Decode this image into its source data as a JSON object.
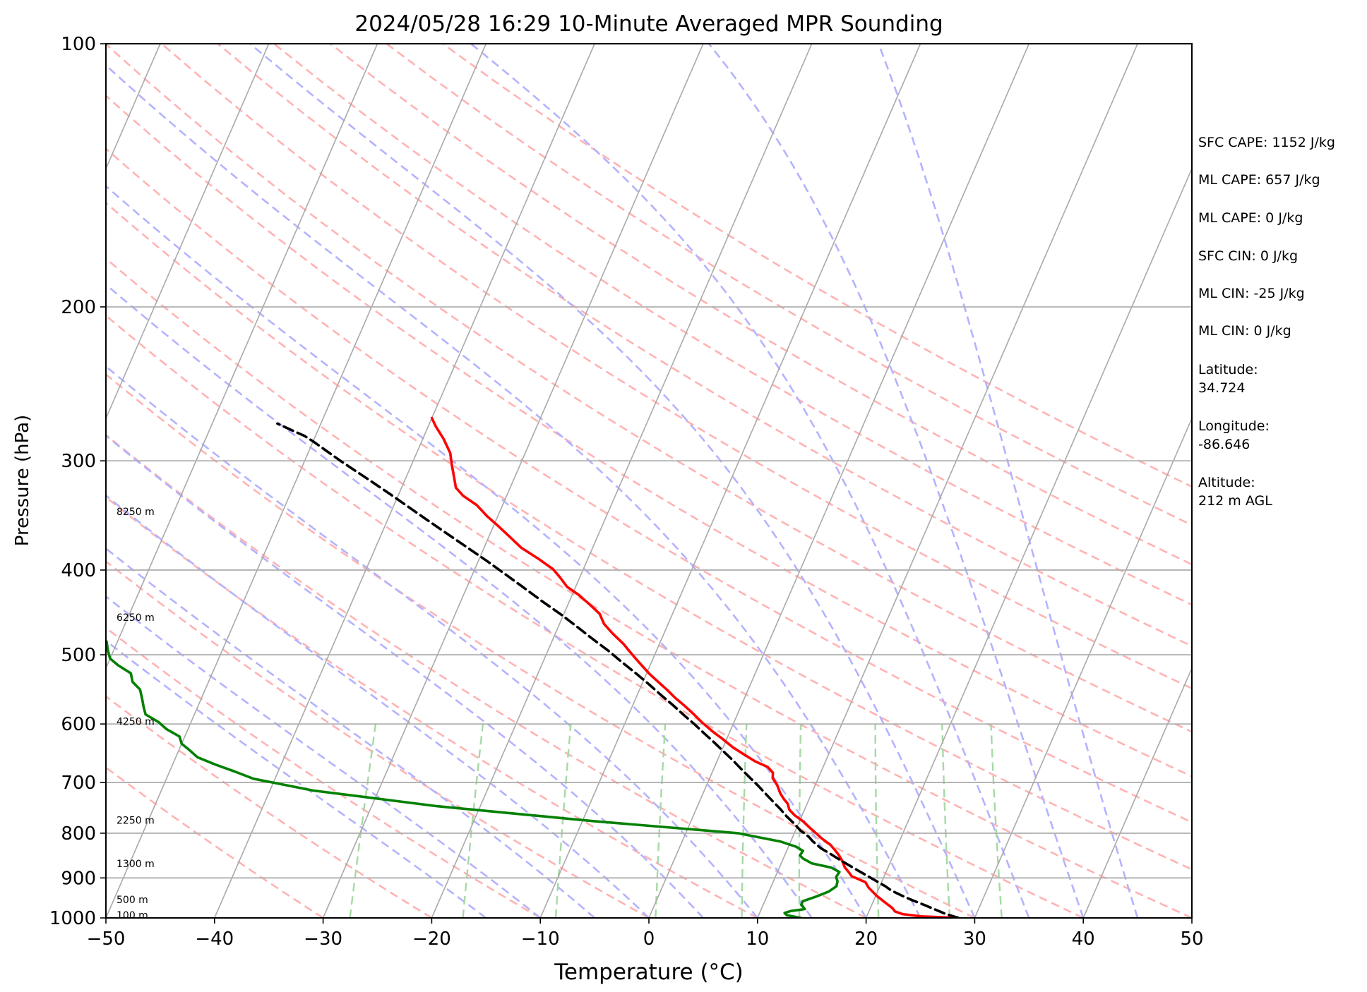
{
  "chart_data": {
    "type": "line",
    "title": "2024/05/28 16:29 10-Minute Averaged MPR Sounding",
    "xlabel": "Temperature (°C)",
    "ylabel": "Pressure (hPa)",
    "xlim": [
      -50,
      50
    ],
    "ylim": [
      1000,
      100
    ],
    "y_scale": "log",
    "skew_t": true,
    "grid": true,
    "x_ticks": [
      "−50",
      "−40",
      "−30",
      "−20",
      "−10",
      "0",
      "10",
      "20",
      "30",
      "40",
      "50"
    ],
    "y_ticks": [
      "100",
      "200",
      "300",
      "400",
      "500",
      "600",
      "700",
      "800",
      "900",
      "1000"
    ],
    "height_labels": [
      {
        "text": "8250 m",
        "p": 343
      },
      {
        "text": "6250 m",
        "p": 453
      },
      {
        "text": "4250 m",
        "p": 596
      },
      {
        "text": "2250 m",
        "p": 773
      },
      {
        "text": "1300 m",
        "p": 867
      },
      {
        "text": "500 m",
        "p": 953
      },
      {
        "text": "100 m",
        "p": 993
      }
    ],
    "series": [
      {
        "role": "temperature",
        "color": "#ff0000",
        "points": [
          [
            28.5,
            1000
          ],
          [
            25,
            996
          ],
          [
            23.2,
            990
          ],
          [
            22.4,
            983
          ],
          [
            22,
            974
          ],
          [
            21,
            958
          ],
          [
            20,
            942
          ],
          [
            19,
            923
          ],
          [
            18.5,
            910
          ],
          [
            17,
            896
          ],
          [
            16.6,
            887
          ],
          [
            16,
            875
          ],
          [
            15.5,
            860
          ],
          [
            15,
            848
          ],
          [
            14.5,
            838
          ],
          [
            13.8,
            825
          ],
          [
            12.8,
            812
          ],
          [
            12,
            800
          ],
          [
            11.1,
            787
          ],
          [
            10.3,
            775
          ],
          [
            9.3,
            763
          ],
          [
            8.6,
            752
          ],
          [
            8.2,
            740
          ],
          [
            7.6,
            730
          ],
          [
            7.1,
            720
          ],
          [
            6.5,
            705
          ],
          [
            5.8,
            692
          ],
          [
            5.6,
            682
          ],
          [
            4.9,
            672
          ],
          [
            3.5,
            662
          ],
          [
            2.2,
            650
          ],
          [
            0.9,
            638
          ],
          [
            -0.3,
            625
          ],
          [
            -1.6,
            612
          ],
          [
            -2.9,
            598
          ],
          [
            -4,
            585
          ],
          [
            -5.2,
            572
          ],
          [
            -6.4,
            560
          ],
          [
            -7.5,
            548
          ],
          [
            -8.6,
            537
          ],
          [
            -9.7,
            526
          ],
          [
            -10.7,
            515
          ],
          [
            -11.6,
            505
          ],
          [
            -12.5,
            495
          ],
          [
            -13.3,
            486
          ],
          [
            -14.7,
            473
          ],
          [
            -15.9,
            461
          ],
          [
            -16.7,
            449
          ],
          [
            -18,
            438
          ],
          [
            -19.4,
            427
          ],
          [
            -20.8,
            418
          ],
          [
            -21.8,
            408
          ],
          [
            -22.8,
            399
          ],
          [
            -24.6,
            388
          ],
          [
            -26.6,
            377
          ],
          [
            -28,
            367
          ],
          [
            -29.6,
            356
          ],
          [
            -31,
            347
          ],
          [
            -32.4,
            337
          ],
          [
            -34,
            329
          ],
          [
            -35,
            322
          ],
          [
            -35.6,
            313
          ],
          [
            -36.3,
            303
          ],
          [
            -36.9,
            294
          ],
          [
            -38.1,
            283
          ],
          [
            -39.3,
            274
          ],
          [
            -40,
            268
          ]
        ]
      },
      {
        "role": "dewpoint",
        "color": "#008000",
        "points": [
          [
            14,
            1000
          ],
          [
            12.6,
            993
          ],
          [
            12.3,
            987
          ],
          [
            12.8,
            982
          ],
          [
            14,
            977
          ],
          [
            13.5,
            966
          ],
          [
            13.5,
            957
          ],
          [
            14.5,
            946
          ],
          [
            15.5,
            933
          ],
          [
            16,
            920
          ],
          [
            15.9,
            908
          ],
          [
            15.6,
            898
          ],
          [
            15.7,
            886
          ],
          [
            14.8,
            876
          ],
          [
            12.8,
            866
          ],
          [
            11.8,
            855
          ],
          [
            11.4,
            848
          ],
          [
            11.5,
            838
          ],
          [
            10.7,
            829
          ],
          [
            9.1,
            818
          ],
          [
            4.8,
            800
          ],
          [
            -9,
            775
          ],
          [
            -24,
            745
          ],
          [
            -36,
            715
          ],
          [
            -42,
            693
          ],
          [
            -44,
            680
          ],
          [
            -46,
            668
          ],
          [
            -48,
            655
          ],
          [
            -49,
            643
          ],
          [
            -50,
            632
          ],
          [
            -50.5,
            620
          ],
          [
            -52,
            608
          ],
          [
            -53,
            597
          ],
          [
            -54.5,
            585
          ],
          [
            -55,
            573
          ],
          [
            -55.5,
            560
          ],
          [
            -56,
            548
          ],
          [
            -57,
            537
          ],
          [
            -57.5,
            525
          ],
          [
            -59,
            514
          ],
          [
            -60,
            505
          ],
          [
            -60.5,
            495
          ],
          [
            -61,
            483
          ],
          [
            -62,
            473
          ],
          [
            -63,
            461
          ],
          [
            -64,
            450
          ],
          [
            -65,
            440
          ],
          [
            -65.5,
            430
          ],
          [
            -66.5,
            420
          ],
          [
            -67,
            408
          ],
          [
            -68,
            398
          ],
          [
            -69,
            388
          ],
          [
            -71,
            375
          ],
          [
            -72,
            364
          ],
          [
            -73,
            354
          ],
          [
            -74,
            341
          ],
          [
            -74.5,
            330
          ],
          [
            -76,
            320
          ],
          [
            -77,
            313
          ],
          [
            -85,
            301
          ],
          [
            -105,
            292
          ]
        ]
      },
      {
        "role": "parcel",
        "color": "#000000",
        "dashed": true,
        "points": [
          [
            28.5,
            1000
          ],
          [
            27.2,
            990
          ],
          [
            26,
            978
          ],
          [
            24.8,
            966
          ],
          [
            23.6,
            955
          ],
          [
            22.4,
            943
          ],
          [
            21.2,
            930
          ],
          [
            20.5,
            920
          ],
          [
            19.6,
            909
          ],
          [
            18.5,
            896
          ],
          [
            17.3,
            882
          ],
          [
            16.1,
            868
          ],
          [
            15,
            855
          ],
          [
            14,
            843
          ],
          [
            13.1,
            833
          ],
          [
            12,
            817
          ],
          [
            11.5,
            808
          ],
          [
            11,
            801
          ],
          [
            10.5,
            795
          ],
          [
            9.6,
            780
          ],
          [
            8.6,
            765
          ],
          [
            7.7,
            750
          ],
          [
            6.7,
            735
          ],
          [
            5.7,
            720
          ],
          [
            4.7,
            705
          ],
          [
            3.6,
            690
          ],
          [
            2.5,
            675
          ],
          [
            1.4,
            660
          ],
          [
            0.2,
            645
          ],
          [
            -1,
            630
          ],
          [
            -2.3,
            615
          ],
          [
            -3.6,
            600
          ],
          [
            -5,
            585
          ],
          [
            -6.4,
            570
          ],
          [
            -7.9,
            555
          ],
          [
            -9.4,
            540
          ],
          [
            -11,
            525
          ],
          [
            -12.7,
            510
          ],
          [
            -14.4,
            495
          ],
          [
            -16.3,
            480
          ],
          [
            -18.2,
            465
          ],
          [
            -20.2,
            450
          ],
          [
            -22.4,
            435
          ],
          [
            -24.6,
            420
          ],
          [
            -26.9,
            405
          ],
          [
            -29.3,
            390
          ],
          [
            -31.9,
            375
          ],
          [
            -34.6,
            360
          ],
          [
            -37.4,
            345
          ],
          [
            -40.3,
            330
          ],
          [
            -43.4,
            315
          ],
          [
            -46.7,
            300
          ],
          [
            -50,
            285
          ],
          [
            -51,
            281
          ],
          [
            -53,
            275
          ],
          [
            -54,
            272
          ]
        ]
      }
    ],
    "dry_adiabats_theta_c": [
      -30,
      -20,
      -10,
      0,
      10,
      20,
      30,
      40,
      50,
      60,
      70,
      80,
      90,
      100,
      110,
      120,
      130,
      140,
      150
    ],
    "moist_adiabats_t1000_c": [
      -15,
      -10,
      -5,
      0,
      5,
      10,
      15,
      20,
      25,
      30,
      35,
      40,
      45
    ],
    "mixing_ratio_lines_gkg": [
      0.4,
      1,
      2,
      4,
      7,
      10,
      16,
      24,
      32
    ],
    "colors": {
      "temperature": "#ff0000",
      "dewpoint": "#008000",
      "parcel": "#000000",
      "isotherm": "#a9a9a9",
      "dry_adiabat": "#ffb3b3",
      "moist_adiabat": "#b3b3ff",
      "mixing_ratio": "#a6d9a6"
    }
  },
  "info": {
    "sfc_cape": "SFC CAPE: 1152 J/kg",
    "ml_cape": "ML CAPE: 657 J/kg",
    "ml_cape_2": "ML CAPE: 0 J/kg",
    "sfc_cin": "SFC CIN: 0 J/kg",
    "ml_cin": "ML CIN: -25 J/kg",
    "ml_cin_2": "ML CIN: 0 J/kg",
    "lat_label": "Latitude:",
    "lat_value": "34.724",
    "lon_label": "Longitude:",
    "lon_value": "-86.646",
    "alt_label": "Altitude:",
    "alt_value": "212 m AGL"
  }
}
